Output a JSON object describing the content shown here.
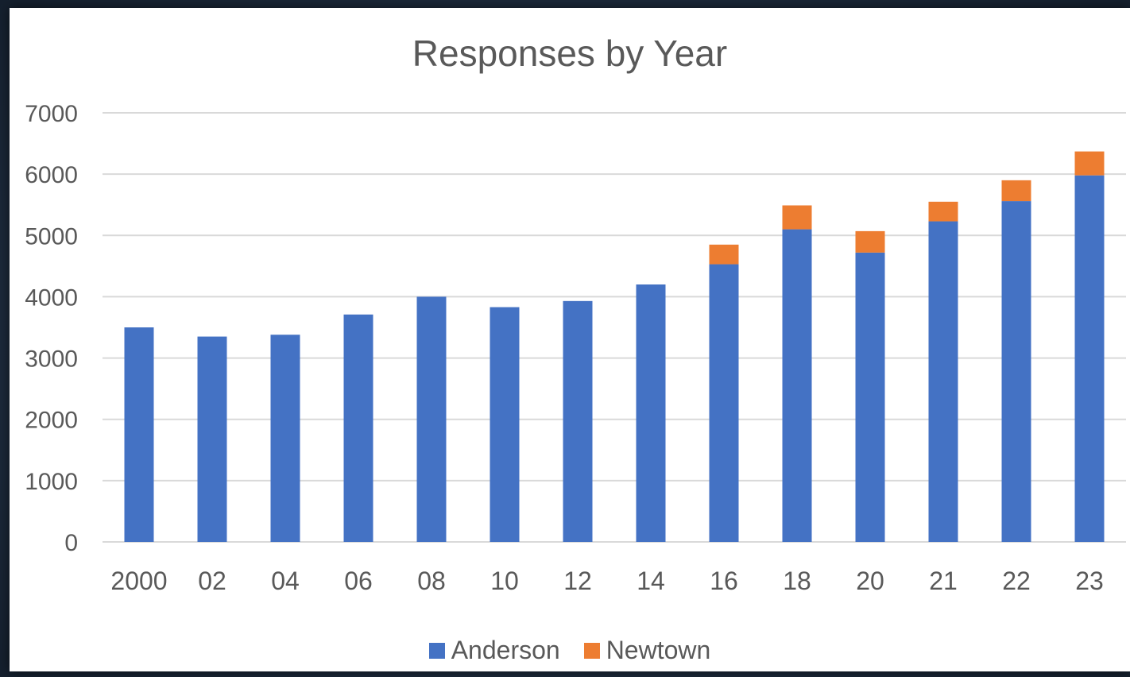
{
  "chart_data": {
    "type": "bar",
    "stacked": true,
    "title": "Responses by Year",
    "xlabel": "",
    "ylabel": "",
    "categories": [
      "2000",
      "02",
      "04",
      "06",
      "08",
      "10",
      "12",
      "14",
      "16",
      "18",
      "20",
      "21",
      "22",
      "23"
    ],
    "series": [
      {
        "name": "Anderson",
        "color": "#4472c4",
        "values": [
          3500,
          3350,
          3380,
          3710,
          4000,
          3830,
          3930,
          4200,
          4530,
          5100,
          4720,
          5230,
          5560,
          5980
        ]
      },
      {
        "name": "Newtown",
        "color": "#ed7d31",
        "values": [
          0,
          0,
          0,
          0,
          0,
          0,
          0,
          0,
          320,
          390,
          350,
          320,
          340,
          390
        ]
      }
    ],
    "ylim": [
      0,
      7000
    ],
    "yticks": [
      0,
      1000,
      2000,
      3000,
      4000,
      5000,
      6000,
      7000
    ],
    "grid": true,
    "legend": "bottom"
  }
}
